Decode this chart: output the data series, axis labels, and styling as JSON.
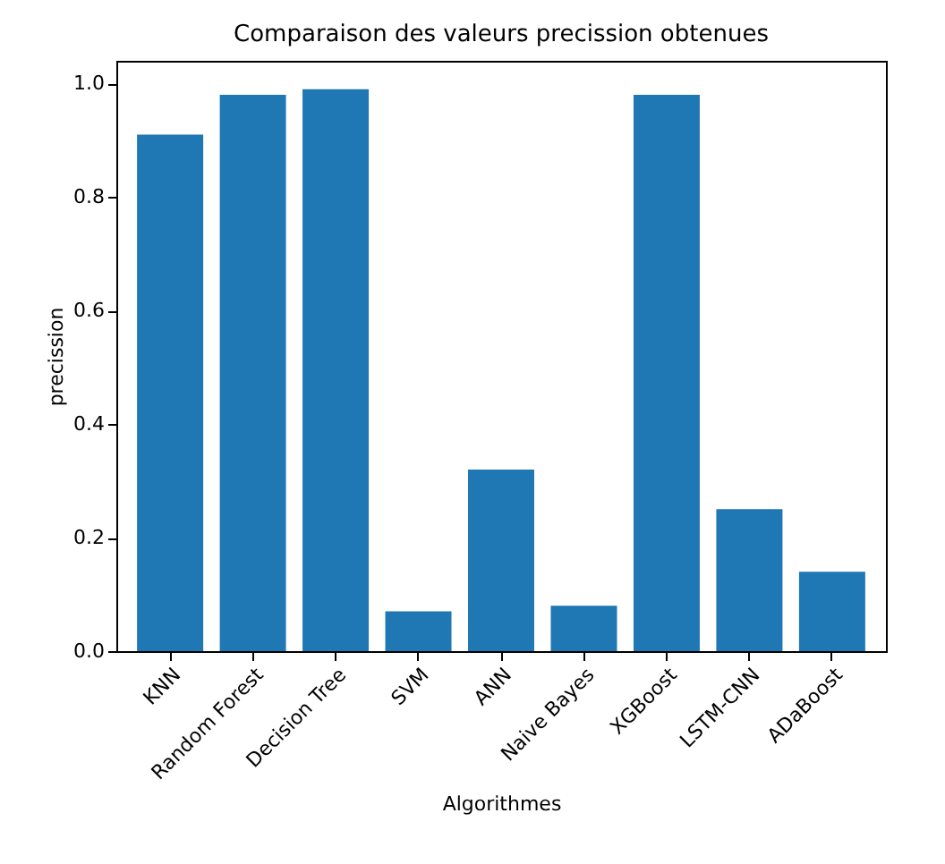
{
  "chart_data": {
    "type": "bar",
    "title": "Comparaison des valeurs precission obtenues",
    "xlabel": "Algorithmes",
    "ylabel": "precission",
    "categories": [
      "KNN",
      "Random Forest",
      "Decision Tree",
      "SVM",
      "ANN",
      "Naive Bayes",
      "XGBoost",
      "LSTM-CNN",
      "ADaBoost"
    ],
    "values": [
      0.91,
      0.98,
      0.99,
      0.07,
      0.32,
      0.08,
      0.98,
      0.25,
      0.14
    ],
    "color": "#1f77b4",
    "ylim": [
      0,
      1.04
    ],
    "yticks": [
      {
        "value": 0,
        "label": "0.0"
      },
      0.2,
      0.4,
      0.6,
      0.8,
      {
        "value": 1,
        "label": "1.0"
      }
    ],
    "grid": false
  }
}
